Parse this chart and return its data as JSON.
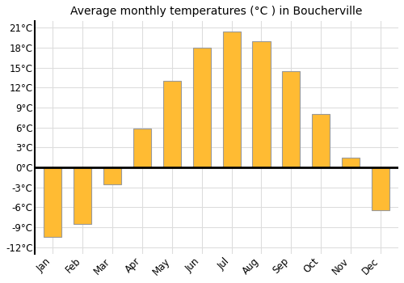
{
  "title": "Average monthly temperatures (°C ) in Boucherville",
  "months": [
    "Jan",
    "Feb",
    "Mar",
    "Apr",
    "May",
    "Jun",
    "Jul",
    "Aug",
    "Sep",
    "Oct",
    "Nov",
    "Dec"
  ],
  "values": [
    -10.5,
    -8.5,
    -2.5,
    5.8,
    13.0,
    18.0,
    20.5,
    19.0,
    14.5,
    8.0,
    1.5,
    -6.5
  ],
  "bar_color": "#FFBB33",
  "bar_edge_color": "#999999",
  "ylim": [
    -13,
    22
  ],
  "yticks": [
    -12,
    -9,
    -6,
    -3,
    0,
    3,
    6,
    9,
    12,
    15,
    18,
    21
  ],
  "ytick_labels": [
    "-12°C",
    "-9°C",
    "-6°C",
    "-3°C",
    "0°C",
    "3°C",
    "6°C",
    "9°C",
    "12°C",
    "15°C",
    "18°C",
    "21°C"
  ],
  "background_color": "#ffffff",
  "grid_color": "#dddddd",
  "zero_line_color": "#000000",
  "title_fontsize": 10,
  "tick_fontsize": 8.5,
  "bar_width": 0.6
}
